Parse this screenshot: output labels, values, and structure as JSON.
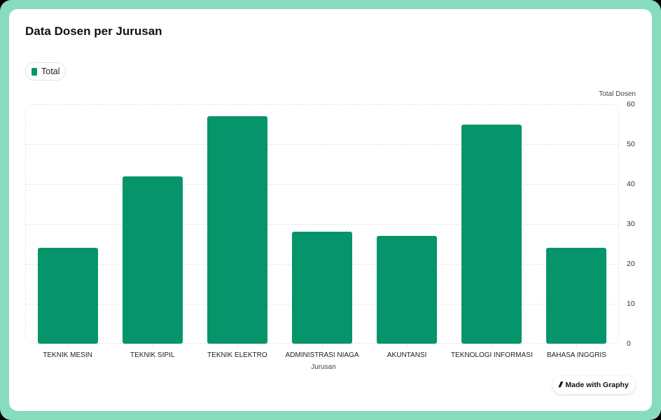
{
  "title": "Data Dosen per Jurusan",
  "legend": [
    {
      "label": "Total",
      "color": "#06956a"
    }
  ],
  "badge": {
    "icon": "graphy-logo-icon",
    "label": "Made with Graphy"
  },
  "colors": {
    "frame": "#87dcbd",
    "bar": "#06956a"
  },
  "chart_data": {
    "type": "bar",
    "title": "Data Dosen per Jurusan",
    "xlabel": "Jurusan",
    "ylabel": "Total Dosen",
    "categories": [
      "TEKNIK MESIN",
      "TEKNIK SIPIL",
      "TEKNIK ELEKTRO",
      "ADMINISTRASI NIAGA",
      "AKUNTANSI",
      "TEKNOLOGI INFORMASI",
      "BAHASA INGGRIS"
    ],
    "series": [
      {
        "name": "Total",
        "values": [
          24,
          42,
          57,
          28,
          27,
          55,
          24
        ]
      }
    ],
    "ylim": [
      0,
      60
    ],
    "yticks": [
      "0",
      "10",
      "20",
      "30",
      "40",
      "50",
      "60"
    ],
    "grid": true,
    "legend_position": "top-left",
    "y_axis_position": "right"
  }
}
